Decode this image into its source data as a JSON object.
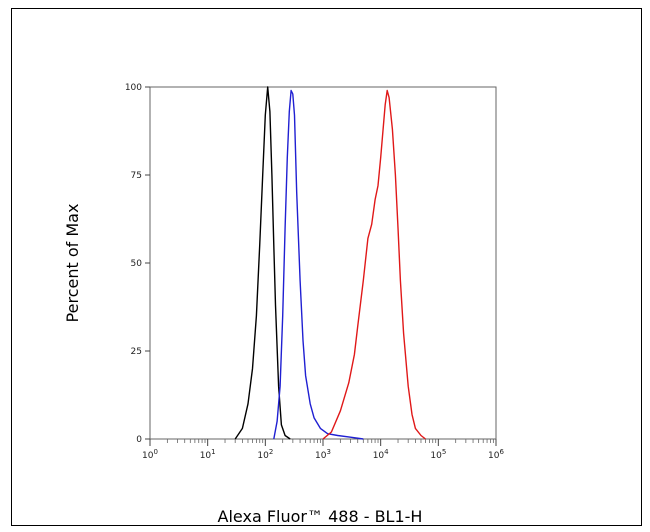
{
  "chart_data": {
    "type": "line",
    "title": "",
    "xlabel": "Alexa Fluor™ 488 - BL1-H",
    "ylabel": "Percent of Max",
    "x_scale": "log",
    "xlim": [
      1,
      1000000
    ],
    "ylim": [
      0,
      100
    ],
    "yticks": [
      "0",
      "25",
      "50",
      "75",
      "100"
    ],
    "xticks": [
      {
        "base": "10",
        "exp": "0"
      },
      {
        "base": "10",
        "exp": "1"
      },
      {
        "base": "10",
        "exp": "2"
      },
      {
        "base": "10",
        "exp": "3"
      },
      {
        "base": "10",
        "exp": "4"
      },
      {
        "base": "10",
        "exp": "5"
      },
      {
        "base": "10",
        "exp": "6"
      }
    ],
    "grid": false,
    "legend": "none",
    "series": [
      {
        "color": "#000000",
        "x": [
          30,
          40,
          50,
          60,
          70,
          80,
          90,
          100,
          110,
          120,
          130,
          140,
          150,
          170,
          190,
          220,
          270
        ],
        "y": [
          0,
          3,
          10,
          20,
          35,
          55,
          75,
          92,
          100,
          93,
          75,
          55,
          38,
          15,
          4,
          1,
          0
        ]
      },
      {
        "color": "#1f1fd2",
        "x": [
          140,
          160,
          180,
          200,
          220,
          240,
          260,
          280,
          300,
          320,
          350,
          400,
          450,
          500,
          600,
          700,
          900,
          1200,
          1800,
          3000,
          5000
        ],
        "y": [
          0,
          5,
          15,
          35,
          60,
          80,
          93,
          99,
          98,
          92,
          70,
          45,
          28,
          18,
          10,
          6,
          3,
          1.5,
          1,
          0.5,
          0
        ]
      },
      {
        "color": "#e01818",
        "x": [
          1000,
          1400,
          2000,
          2800,
          3500,
          4000,
          5000,
          6000,
          7000,
          8000,
          9000,
          10000,
          11000,
          12000,
          13000,
          14000,
          16000,
          18000,
          20000,
          22000,
          25000,
          30000,
          35000,
          40000,
          50000,
          60000
        ],
        "y": [
          0,
          2,
          8,
          16,
          24,
          32,
          45,
          57,
          61,
          68,
          72,
          80,
          88,
          95,
          99,
          97,
          88,
          75,
          60,
          45,
          30,
          15,
          7,
          3,
          1,
          0
        ]
      }
    ]
  }
}
